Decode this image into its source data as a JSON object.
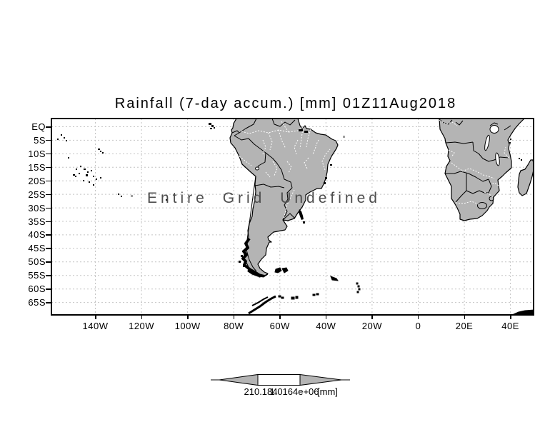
{
  "title": "Rainfall (7-day accum.) [mm] 01Z11Aug2018",
  "map": {
    "overlay_text": "Entire Grid Undefined",
    "lat_labels": [
      "EQ",
      "5S",
      "10S",
      "15S",
      "20S",
      "25S",
      "30S",
      "35S",
      "40S",
      "45S",
      "50S",
      "55S",
      "60S",
      "65S"
    ],
    "lon_labels": [
      "140W",
      "120W",
      "100W",
      "80W",
      "60W",
      "40W",
      "20W",
      "0",
      "20E",
      "40E"
    ]
  },
  "colorbar": {
    "min_label": "210.184",
    "max_label": "1.0164e+06",
    "unit": "[mm]"
  },
  "colors": {
    "land": "#b4b4b4",
    "coastline": "#000000",
    "grid": "#c4c4c4",
    "overlay_text": "#4d4d4d",
    "background": "#ffffff"
  }
}
